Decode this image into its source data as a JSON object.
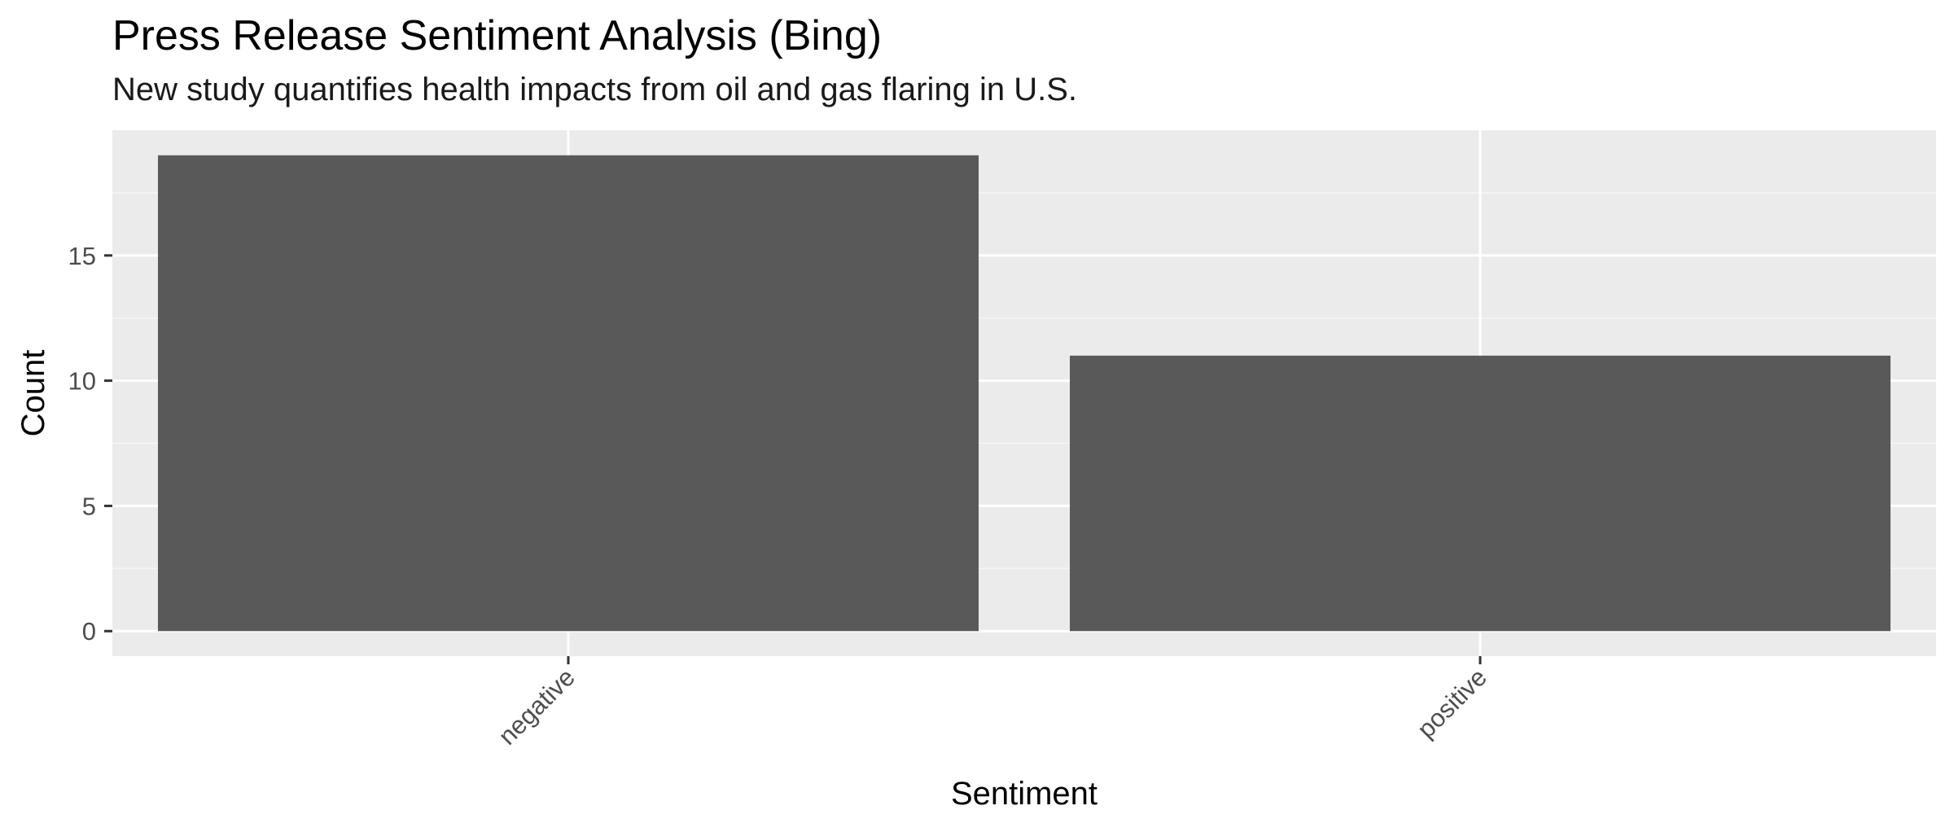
{
  "chart_data": {
    "type": "bar",
    "title": "Press Release Sentiment Analysis (Bing)",
    "subtitle": "New study quantifies health impacts from oil and gas flaring in U.S.",
    "xlabel": "Sentiment",
    "ylabel": "Count",
    "categories": [
      "negative",
      "positive"
    ],
    "values": [
      19,
      11
    ],
    "ylim": [
      -1,
      20
    ],
    "yticks": [
      0,
      5,
      10,
      15
    ],
    "grid": true,
    "legend": "none",
    "colors": {
      "bar": "#595959",
      "panel": "#ebebeb",
      "grid_major": "#ffffff",
      "grid_minor": "#f5f5f5",
      "tick": "#333333"
    }
  }
}
